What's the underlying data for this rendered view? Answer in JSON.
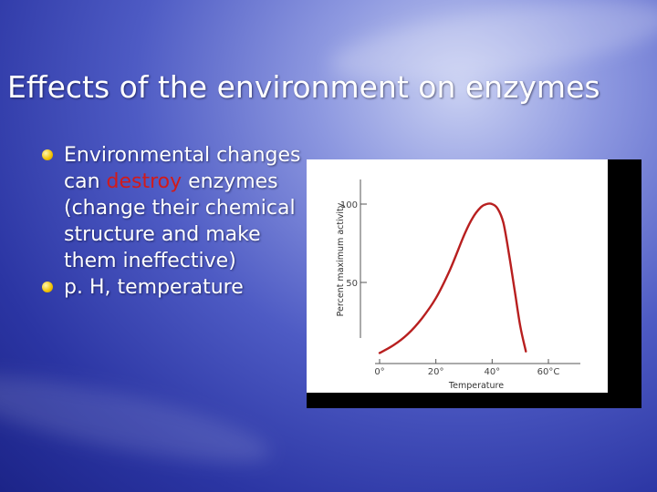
{
  "slide": {
    "title": "Effects of the environment on enzymes",
    "bullets": [
      {
        "text_before": "Environmental changes can ",
        "highlight": "destroy",
        "text_after": " enzymes (change their chemical structure and make them ineffective)"
      },
      {
        "text_before": "p. H,  temperature",
        "highlight": "",
        "text_after": ""
      }
    ],
    "colors": {
      "highlight": "#d21a1a",
      "curve": "#b81f1f",
      "bullet": "#f2c200",
      "title": "#ffffff"
    }
  },
  "chart_data": {
    "type": "line",
    "xlabel": "Temperature",
    "ylabel": "Percent maximum activity",
    "xlim": [
      0,
      60
    ],
    "ylim": [
      0,
      120
    ],
    "x_ticks": [
      0,
      20,
      40,
      60
    ],
    "x_tick_labels": [
      "0°",
      "20°",
      "40°",
      "60°C"
    ],
    "y_ticks": [
      50,
      100
    ],
    "y_tick_labels": [
      "50",
      "100"
    ],
    "grid": false,
    "series": [
      {
        "name": "",
        "color": "#b81f1f",
        "x": [
          0,
          5,
          10,
          15,
          20,
          25,
          30,
          33,
          36,
          38,
          40,
          42,
          44,
          46,
          48,
          50,
          52
        ],
        "values": [
          5,
          10,
          17,
          27,
          40,
          58,
          80,
          91,
          98,
          100,
          100,
          97,
          88,
          68,
          45,
          22,
          6
        ]
      }
    ]
  }
}
